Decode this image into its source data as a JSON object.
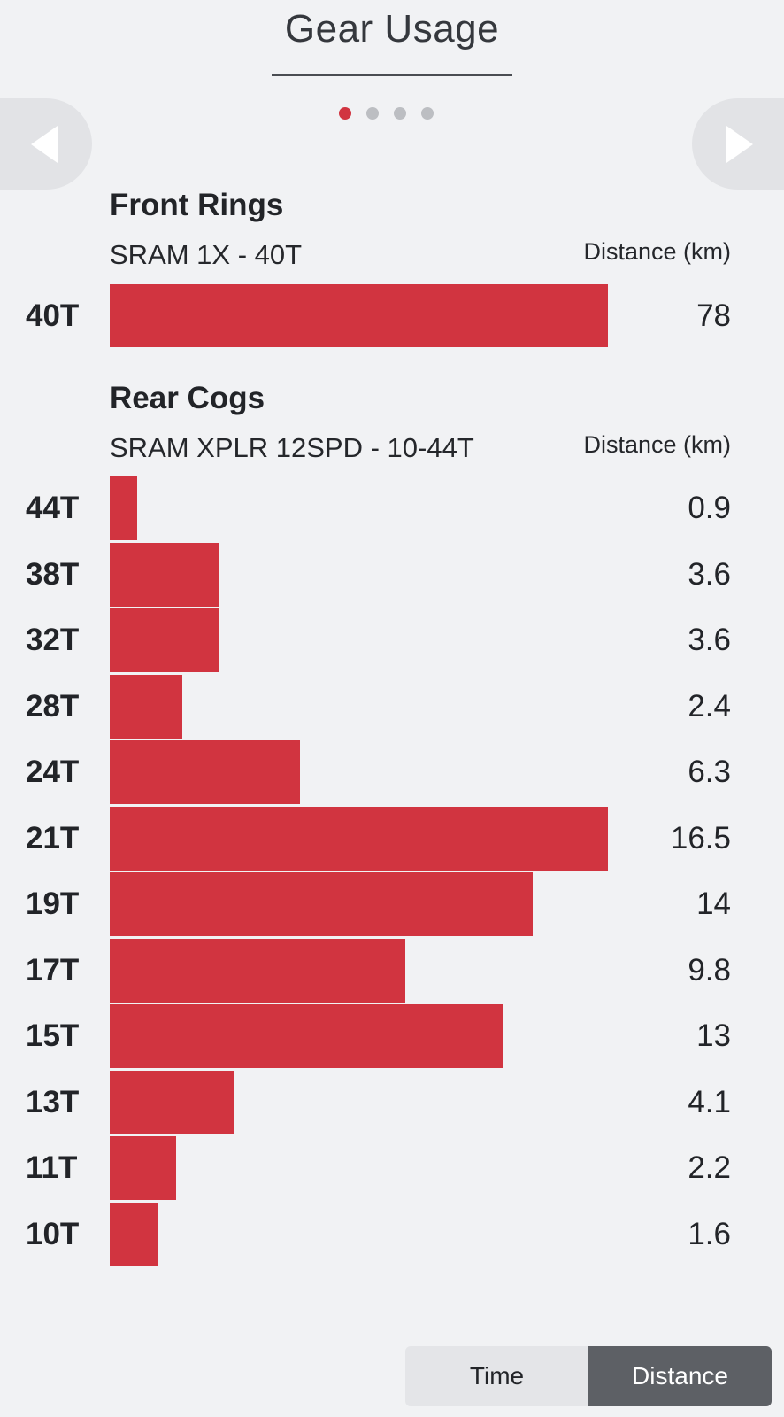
{
  "header": {
    "title": "Gear Usage"
  },
  "pager": {
    "count": 4,
    "active_index": 0
  },
  "navigation": {
    "prev_icon": "triangle-left-icon",
    "next_icon": "triangle-right-icon"
  },
  "front": {
    "title": "Front Rings",
    "subtitle": "SRAM 1X - 40T",
    "column_header": "Distance (km)",
    "rows": [
      {
        "label": "40T",
        "value": "78"
      }
    ]
  },
  "rear": {
    "title": "Rear Cogs",
    "subtitle": "SRAM XPLR 12SPD - 10-44T",
    "column_header": "Distance (km)",
    "rows": [
      {
        "label": "44T",
        "value": "0.9"
      },
      {
        "label": "38T",
        "value": "3.6"
      },
      {
        "label": "32T",
        "value": "3.6"
      },
      {
        "label": "28T",
        "value": "2.4"
      },
      {
        "label": "24T",
        "value": "6.3"
      },
      {
        "label": "21T",
        "value": "16.5"
      },
      {
        "label": "19T",
        "value": "14"
      },
      {
        "label": "17T",
        "value": "9.8"
      },
      {
        "label": "15T",
        "value": "13"
      },
      {
        "label": "13T",
        "value": "4.1"
      },
      {
        "label": "11T",
        "value": "2.2"
      },
      {
        "label": "10T",
        "value": "1.6"
      }
    ]
  },
  "toggle": {
    "time_label": "Time",
    "distance_label": "Distance",
    "selected": "distance"
  },
  "colors": {
    "bar": "#d13440",
    "background": "#f1f2f4",
    "active_dot": "#d13440",
    "selected_toggle": "#5d6065"
  }
}
